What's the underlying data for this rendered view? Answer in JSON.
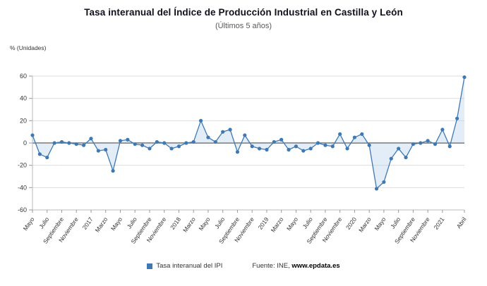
{
  "title": "Tasa interanual del Índice de Producción Industrial en Castilla y León",
  "subtitle": "(Últimos 5 años)",
  "y_axis_unit": "% (Unidades)",
  "legend": {
    "label": "Tasa interanual del IPI"
  },
  "source": {
    "prefix": "Fuente: INE, ",
    "site": "www.epdata.es"
  },
  "colors": {
    "accent": "#3e79b4",
    "grid": "#dddddd",
    "zero_line": "#4a4a4a",
    "area_fill": "#aecbe8",
    "axis": "#bbbbbb",
    "tick": "#999999",
    "text": "#333333"
  },
  "chart_data": {
    "type": "line",
    "title": "Tasa interanual del Índice de Producción Industrial en Castilla y León",
    "subtitle": "(Últimos 5 años)",
    "ylabel": "% (Unidades)",
    "ylim": [
      -60,
      60
    ],
    "y_ticks": [
      60,
      40,
      20,
      0,
      -20,
      -40,
      -60
    ],
    "grid": true,
    "legend_position": "bottom",
    "series_name": "Tasa interanual del IPI",
    "x_period": "monthly, Mayo 2016 - Abril 2021",
    "values": [
      7,
      -10,
      -13,
      0,
      1,
      0,
      -1,
      -2,
      4,
      -7,
      -6,
      -25,
      2,
      3,
      -1,
      -2,
      -5,
      1,
      0,
      -5,
      -3,
      0,
      1,
      20,
      5,
      1,
      10,
      12,
      -8,
      7,
      -3,
      -5,
      -6,
      1,
      3,
      -6,
      -3,
      -7,
      -5,
      0,
      -2,
      -3,
      8,
      -5,
      5,
      8,
      -2,
      -41,
      -35,
      -14,
      -5,
      -13,
      -1,
      0,
      2,
      -1,
      12,
      -3,
      22,
      59
    ],
    "x_tick_labels": [
      {
        "index": 0,
        "label": "Mayo"
      },
      {
        "index": 2,
        "label": "Julio"
      },
      {
        "index": 4,
        "label": "Septiembre"
      },
      {
        "index": 6,
        "label": "Noviembre"
      },
      {
        "index": 8,
        "label": "2017"
      },
      {
        "index": 10,
        "label": "Marzo"
      },
      {
        "index": 12,
        "label": "Mayo"
      },
      {
        "index": 14,
        "label": "Julio"
      },
      {
        "index": 16,
        "label": "Septiembre"
      },
      {
        "index": 18,
        "label": "Noviembre"
      },
      {
        "index": 20,
        "label": "2018"
      },
      {
        "index": 22,
        "label": "Marzo"
      },
      {
        "index": 24,
        "label": "Mayo"
      },
      {
        "index": 26,
        "label": "Julio"
      },
      {
        "index": 28,
        "label": "Septiembre"
      },
      {
        "index": 30,
        "label": "Noviembre"
      },
      {
        "index": 32,
        "label": "2019"
      },
      {
        "index": 34,
        "label": "Marzo"
      },
      {
        "index": 36,
        "label": "Mayo"
      },
      {
        "index": 38,
        "label": "Julio"
      },
      {
        "index": 40,
        "label": "Septiembre"
      },
      {
        "index": 42,
        "label": "Noviembre"
      },
      {
        "index": 44,
        "label": "2020"
      },
      {
        "index": 46,
        "label": "Marzo"
      },
      {
        "index": 48,
        "label": "Mayo"
      },
      {
        "index": 50,
        "label": "Julio"
      },
      {
        "index": 52,
        "label": "Septiembre"
      },
      {
        "index": 54,
        "label": "Noviembre"
      },
      {
        "index": 56,
        "label": "2021"
      },
      {
        "index": 59,
        "label": "Abril"
      }
    ]
  }
}
